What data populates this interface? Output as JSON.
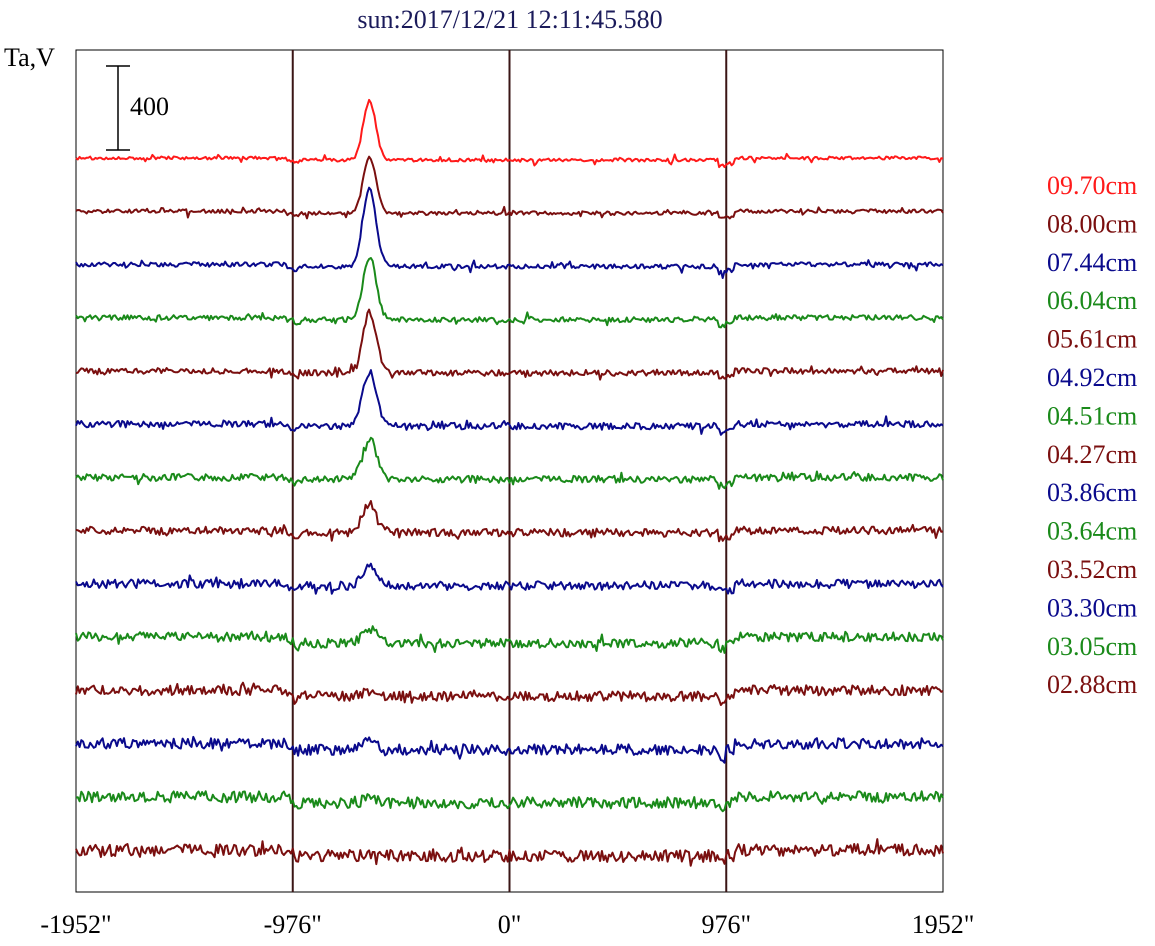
{
  "chart_data": {
    "type": "line",
    "title": "sun:2017/12/21 12:11:45.580",
    "ylabel": "Ta,V",
    "scale_bar_label": "400",
    "scale_bar_value": 400,
    "x_ticks": [
      "-1952\"",
      "-976\"",
      "0\"",
      "976\"",
      "1952\""
    ],
    "x_tick_values": [
      -1952,
      -976,
      0,
      976,
      1952
    ],
    "xlim": [
      -1952,
      1952
    ],
    "vertical_markers": [
      -976,
      0,
      976
    ],
    "peak_x": -630,
    "grid": false,
    "legend_position": "right",
    "colors": {
      "red": "#ff1a1a",
      "brown": "#7a0f0f",
      "blue": "#0a0a8c",
      "green": "#1a8a1a",
      "marker": "#3a1515",
      "title": "#1a1a5a"
    },
    "series": [
      {
        "name": "09.70cm",
        "color": "#ff1a1a",
        "peak": 280
      },
      {
        "name": "08.00cm",
        "color": "#7a0f0f",
        "peak": 270
      },
      {
        "name": "07.44cm",
        "color": "#0a0a8c",
        "peak": 370
      },
      {
        "name": "06.04cm",
        "color": "#1a8a1a",
        "peak": 300
      },
      {
        "name": "05.61cm",
        "color": "#7a0f0f",
        "peak": 290
      },
      {
        "name": "04.92cm",
        "color": "#0a0a8c",
        "peak": 260
      },
      {
        "name": "04.51cm",
        "color": "#1a8a1a",
        "peak": 195
      },
      {
        "name": "04.27cm",
        "color": "#7a0f0f",
        "peak": 140
      },
      {
        "name": "03.86cm",
        "color": "#0a0a8c",
        "peak": 90
      },
      {
        "name": "03.64cm",
        "color": "#1a8a1a",
        "peak": 65
      },
      {
        "name": "03.52cm",
        "color": "#7a0f0f",
        "peak": 25
      },
      {
        "name": "03.30cm",
        "color": "#0a0a8c",
        "peak": 40
      },
      {
        "name": "03.05cm",
        "color": "#1a8a1a",
        "peak": 15
      },
      {
        "name": "02.88cm",
        "color": "#7a0f0f",
        "peak": 10
      }
    ]
  }
}
